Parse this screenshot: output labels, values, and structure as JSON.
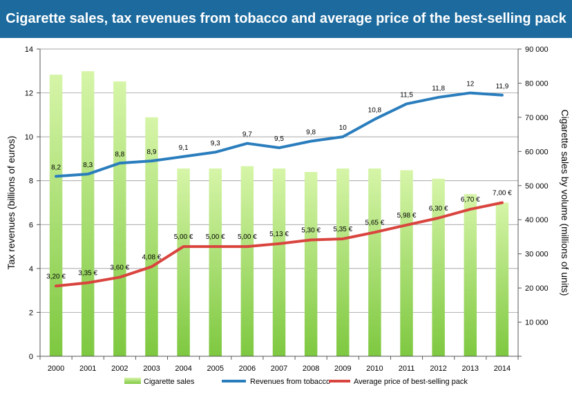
{
  "header": {
    "title": "Cigarette sales, tax revenues from tobacco and average price of the best-selling pack"
  },
  "colors": {
    "title_bg": "#1d6b9e",
    "bar_top": "#d6f5a8",
    "bar_bottom": "#7ec840",
    "revenues_line": "#2a7dbd",
    "price_line": "#d9443e",
    "grid": "#888888",
    "text": "#000000"
  },
  "chart_data": {
    "type": "bar+line",
    "title": "Cigarette sales, tax revenues from tobacco and average price of the best-selling pack",
    "categories": [
      "2000",
      "2001",
      "2002",
      "2003",
      "2004",
      "2005",
      "2006",
      "2007",
      "2008",
      "2009",
      "2010",
      "2011",
      "2012",
      "2013",
      "2014"
    ],
    "left_axis": {
      "label": "Tax revenues (billions of euros)",
      "min": 0,
      "max": 14,
      "step": 2,
      "ticks": [
        "0",
        "2",
        "4",
        "6",
        "8",
        "10",
        "12",
        "14"
      ]
    },
    "right_axis": {
      "label": "Cigarette sales by volume (millions of units)",
      "min": 0,
      "max": 90000,
      "step": 10000,
      "ticks": [
        "",
        "10 000",
        "20 000",
        "30 000",
        "40 000",
        "50 000",
        "60 000",
        "70 000",
        "80 000",
        "90 000"
      ]
    },
    "series": [
      {
        "name": "Cigarette sales",
        "type": "bar",
        "axis": "right",
        "values": [
          82500,
          83500,
          80500,
          70000,
          55000,
          55000,
          55700,
          55000,
          54000,
          55000,
          55000,
          54500,
          52000,
          47500,
          45000
        ]
      },
      {
        "name": "Revenues from tobacco",
        "type": "line",
        "axis": "left",
        "values": [
          8.2,
          8.3,
          8.8,
          8.9,
          9.1,
          9.3,
          9.7,
          9.5,
          9.8,
          10,
          10.8,
          11.5,
          11.8,
          12,
          11.9
        ],
        "labels": [
          "8,2",
          "8,3",
          "8,8",
          "8,9",
          "9,1",
          "9,3",
          "9,7",
          "9,5",
          "9,8",
          "10",
          "10,8",
          "11,5",
          "11,8",
          "12",
          "11,9"
        ]
      },
      {
        "name": "Average price of best-selling pack",
        "type": "line",
        "axis": "left",
        "values": [
          3.2,
          3.35,
          3.6,
          4.08,
          5.0,
          5.0,
          5.0,
          5.13,
          5.3,
          5.35,
          5.65,
          5.98,
          6.3,
          6.7,
          7.0
        ],
        "labels": [
          "3,20 €",
          "3,35 €",
          "3,60 €",
          "4,08 €",
          "5,00 €",
          "5,00 €",
          "5,00 €",
          "5,13 €",
          "5,30 €",
          "5,35 €",
          "5,65 €",
          "5,98 €",
          "6,30 €",
          "6,70 €",
          "7,00 €"
        ]
      }
    ],
    "legend": {
      "position": "bottom",
      "items": [
        "Cigarette sales",
        "Revenues from tobacco",
        "Average price of best-selling pack"
      ]
    }
  }
}
